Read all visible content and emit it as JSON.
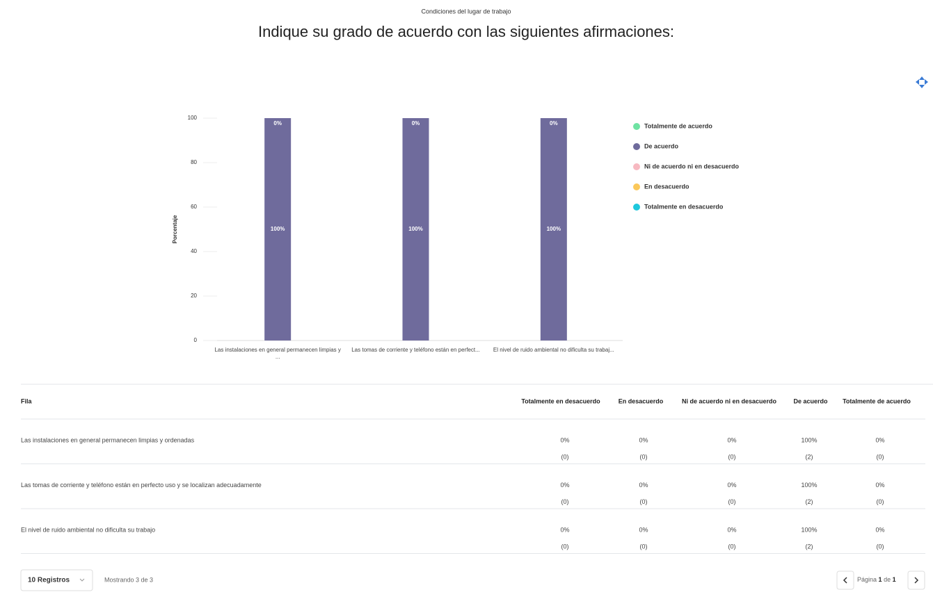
{
  "header": {
    "subtitle": "Condiciones del lugar de trabajo",
    "title": "Indique su grado de acuerdo con las siguientes afirmaciones:"
  },
  "chart_data": {
    "type": "stacked_bar",
    "ylabel": "Porcentaje",
    "categories": [
      "Las instalaciones en general permanecen limpias y ...",
      "Las tomas de corriente y teléfono están en perfect...",
      "El nivel de ruido ambiental no dificulta su trabaj..."
    ],
    "series": [
      {
        "name": "Totalmente de acuerdo",
        "color": "#6fe3a3",
        "values": [
          0,
          0,
          0
        ],
        "value_labels": [
          "0%",
          "0%",
          "0%"
        ]
      },
      {
        "name": "De acuerdo",
        "color": "#6f6b9c",
        "values": [
          100,
          100,
          100
        ],
        "value_labels": [
          "100%",
          "100%",
          "100%"
        ]
      },
      {
        "name": "Ni de acuerdo ni en desacuerdo",
        "color": "#f7b9c1",
        "values": [
          0,
          0,
          0
        ]
      },
      {
        "name": "En desacuerdo",
        "color": "#fbc85a",
        "values": [
          0,
          0,
          0
        ]
      },
      {
        "name": "Totalmente en desacuerdo",
        "color": "#1ec8dd",
        "values": [
          0,
          0,
          0
        ]
      }
    ],
    "ylim": [
      0,
      100
    ],
    "yticks": [
      0,
      20,
      40,
      60,
      80,
      100
    ],
    "grid": false,
    "legend": "right"
  },
  "table": {
    "headers": [
      "Fila",
      "Totalmente en desacuerdo",
      "En desacuerdo",
      "Ni de acuerdo ni en desacuerdo",
      "De acuerdo",
      "Totalmente de acuerdo"
    ],
    "rows": [
      {
        "label": "Las instalaciones en general permanecen limpias y ordenadas",
        "cells": [
          [
            "0%",
            "(0)"
          ],
          [
            "0%",
            "(0)"
          ],
          [
            "0%",
            "(0)"
          ],
          [
            "100%",
            "(2)"
          ],
          [
            "0%",
            "(0)"
          ]
        ]
      },
      {
        "label": "Las tomas de corriente y teléfono están en perfecto uso y se localizan adecuadamente",
        "cells": [
          [
            "0%",
            "(0)"
          ],
          [
            "0%",
            "(0)"
          ],
          [
            "0%",
            "(0)"
          ],
          [
            "100%",
            "(2)"
          ],
          [
            "0%",
            "(0)"
          ]
        ]
      },
      {
        "label": "El nivel de ruido ambiental no dificulta su trabajo",
        "cells": [
          [
            "0%",
            "(0)"
          ],
          [
            "0%",
            "(0)"
          ],
          [
            "0%",
            "(0)"
          ],
          [
            "100%",
            "(2)"
          ],
          [
            "0%",
            "(0)"
          ]
        ]
      }
    ]
  },
  "footer": {
    "page_size": "10 Registros",
    "showing": "Mostrando 3 de 3",
    "page_word": "Página",
    "page": "1",
    "of_word": "de",
    "pages": "1"
  }
}
